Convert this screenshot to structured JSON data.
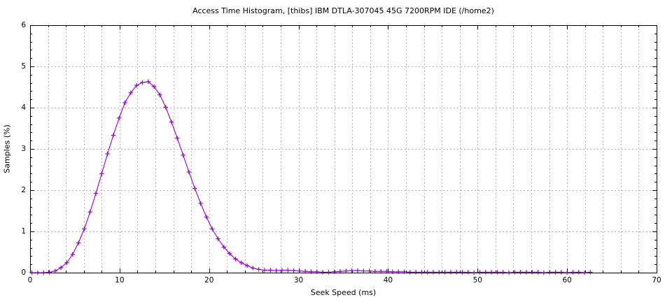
{
  "figure": {
    "background": "#ffffff",
    "border_color": "#000000",
    "grid_color": "#b4b4b4",
    "text_color": "#000000"
  },
  "chart_data": {
    "type": "line",
    "title": "Access Time Histogram, [thibs] IBM DTLA-307045 45G 7200RPM IDE (/home2)",
    "xlabel": "Seek Speed (ms)",
    "ylabel": "Samples (%)",
    "xlim": [
      0,
      70
    ],
    "ylim": [
      0,
      6
    ],
    "xticks": [
      0,
      10,
      20,
      30,
      40,
      50,
      60,
      70
    ],
    "yticks": [
      0,
      1,
      2,
      3,
      4,
      5,
      6
    ],
    "minor_x_step": 2,
    "minor_y_step": 0.2,
    "grid": true,
    "grid_style": "dashed",
    "legend": null,
    "series": [
      {
        "name": "samples",
        "color": "#9400d3",
        "marker": "plus",
        "points": [
          [
            0.2,
            0.0
          ],
          [
            0.85,
            0.0
          ],
          [
            1.5,
            0.0
          ],
          [
            2.15,
            0.01
          ],
          [
            2.8,
            0.04
          ],
          [
            3.45,
            0.12
          ],
          [
            4.1,
            0.24
          ],
          [
            4.75,
            0.44
          ],
          [
            5.4,
            0.72
          ],
          [
            6.05,
            1.06
          ],
          [
            6.7,
            1.47
          ],
          [
            7.35,
            1.92
          ],
          [
            8.0,
            2.4
          ],
          [
            8.65,
            2.88
          ],
          [
            9.3,
            3.33
          ],
          [
            9.95,
            3.75
          ],
          [
            10.6,
            4.12
          ],
          [
            11.25,
            4.36
          ],
          [
            11.9,
            4.54
          ],
          [
            12.55,
            4.61
          ],
          [
            13.2,
            4.63
          ],
          [
            13.85,
            4.51
          ],
          [
            14.5,
            4.31
          ],
          [
            15.15,
            4.01
          ],
          [
            15.8,
            3.65
          ],
          [
            16.45,
            3.26
          ],
          [
            17.1,
            2.85
          ],
          [
            17.75,
            2.44
          ],
          [
            18.4,
            2.04
          ],
          [
            19.05,
            1.68
          ],
          [
            19.7,
            1.35
          ],
          [
            20.35,
            1.06
          ],
          [
            21.0,
            0.82
          ],
          [
            21.65,
            0.62
          ],
          [
            22.3,
            0.46
          ],
          [
            22.95,
            0.33
          ],
          [
            23.6,
            0.24
          ],
          [
            24.25,
            0.17
          ],
          [
            24.9,
            0.11
          ],
          [
            25.55,
            0.08
          ],
          [
            26.2,
            0.06
          ],
          [
            26.85,
            0.06
          ],
          [
            27.5,
            0.05
          ],
          [
            28.15,
            0.06
          ],
          [
            28.8,
            0.06
          ],
          [
            29.45,
            0.05
          ],
          [
            30.1,
            0.04
          ],
          [
            30.75,
            0.03
          ],
          [
            31.4,
            0.02
          ],
          [
            32.05,
            0.02
          ],
          [
            32.7,
            0.01
          ],
          [
            33.35,
            0.01
          ],
          [
            34.0,
            0.02
          ],
          [
            34.65,
            0.03
          ],
          [
            35.3,
            0.04
          ],
          [
            35.95,
            0.05
          ],
          [
            36.6,
            0.05
          ],
          [
            37.25,
            0.04
          ],
          [
            37.9,
            0.04
          ],
          [
            38.55,
            0.03
          ],
          [
            39.2,
            0.03
          ],
          [
            39.85,
            0.03
          ],
          [
            40.5,
            0.02
          ],
          [
            41.15,
            0.02
          ],
          [
            41.8,
            0.02
          ],
          [
            42.45,
            0.01
          ],
          [
            43.1,
            0.01
          ],
          [
            43.75,
            0.01
          ],
          [
            44.4,
            0.01
          ],
          [
            45.05,
            0.01
          ],
          [
            45.7,
            0.01
          ],
          [
            46.35,
            0.01
          ],
          [
            47.0,
            0.01
          ],
          [
            47.65,
            0.01
          ],
          [
            48.3,
            0.01
          ],
          [
            48.95,
            0.01
          ],
          [
            49.6,
            0.0
          ],
          [
            50.25,
            0.01
          ],
          [
            50.9,
            0.01
          ],
          [
            51.55,
            0.01
          ],
          [
            52.2,
            0.01
          ],
          [
            52.85,
            0.01
          ],
          [
            53.5,
            0.0
          ],
          [
            54.15,
            0.01
          ],
          [
            54.8,
            0.01
          ],
          [
            55.45,
            0.01
          ],
          [
            56.1,
            0.01
          ],
          [
            56.75,
            0.01
          ],
          [
            57.4,
            0.0
          ],
          [
            58.05,
            0.01
          ],
          [
            58.7,
            0.01
          ],
          [
            59.35,
            0.01
          ],
          [
            60.0,
            0.0
          ],
          [
            60.65,
            0.01
          ],
          [
            61.3,
            0.01
          ],
          [
            61.95,
            0.0
          ],
          [
            62.6,
            0.01
          ]
        ]
      }
    ]
  }
}
